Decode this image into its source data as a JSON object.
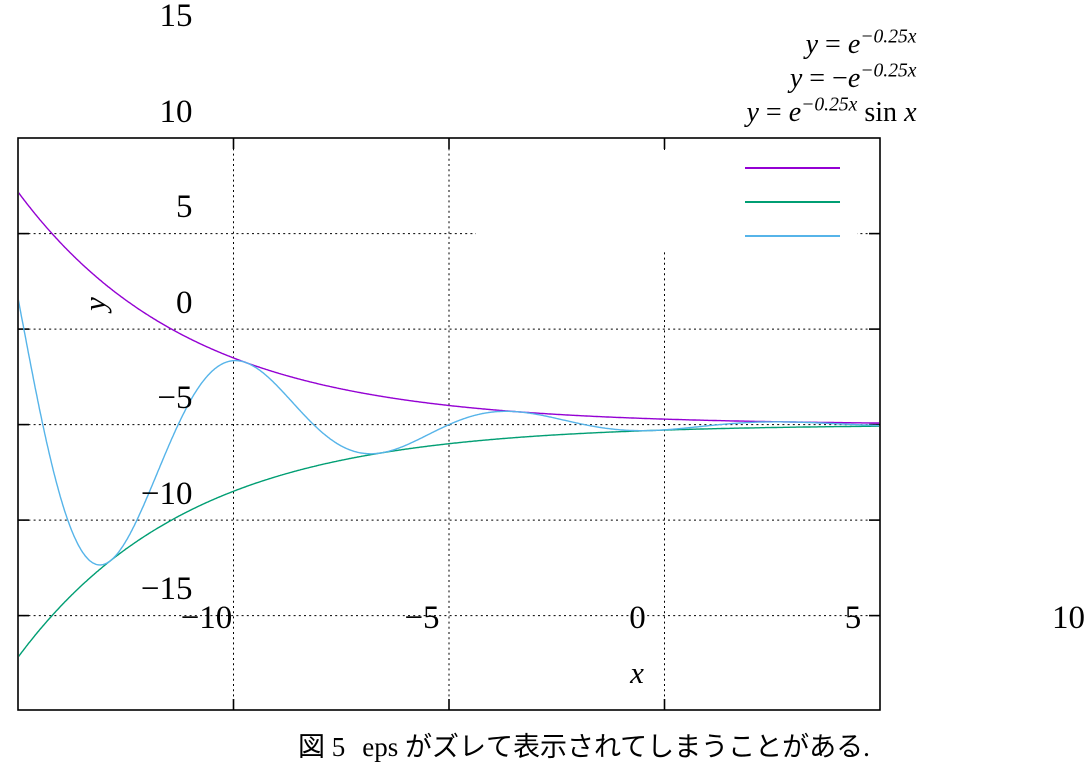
{
  "figure": {
    "caption_label": "図 5",
    "caption_text": "eps がズレて表示されてしまうことがある."
  },
  "chart_data": {
    "type": "line",
    "title": "",
    "xlabel": "x",
    "ylabel": "y",
    "xlim": [
      -10,
      10
    ],
    "ylim": [
      -15,
      15
    ],
    "x_ticks": [
      -10,
      -5,
      0,
      5,
      10
    ],
    "y_ticks": [
      15,
      10,
      5,
      0,
      -5,
      -10,
      -15
    ],
    "grid": true,
    "grid_style": "dotted",
    "legend_position": "top-right",
    "legend_opaque": true,
    "series": [
      {
        "name": "y = e^(-0.25x)",
        "label_parts": [
          {
            "text": "y",
            "style": "italic"
          },
          {
            "text": " = ",
            "style": "roman"
          },
          {
            "text": "e",
            "style": "italic"
          },
          {
            "text": "−0.25x",
            "style": "sup"
          }
        ],
        "color": "#9400d3",
        "amplitude": 1,
        "decay": -0.25,
        "sine": false
      },
      {
        "name": "y = -e^(-0.25x)",
        "label_parts": [
          {
            "text": "y",
            "style": "italic"
          },
          {
            "text": " = −",
            "style": "roman"
          },
          {
            "text": "e",
            "style": "italic"
          },
          {
            "text": "−0.25x",
            "style": "sup"
          }
        ],
        "color": "#009e73",
        "amplitude": -1,
        "decay": -0.25,
        "sine": false
      },
      {
        "name": "y = e^(-0.25x) sin x",
        "label_parts": [
          {
            "text": "y",
            "style": "italic"
          },
          {
            "text": " = ",
            "style": "roman"
          },
          {
            "text": "e",
            "style": "italic"
          },
          {
            "text": "−0.25x",
            "style": "sup"
          },
          {
            "text": " sin ",
            "style": "roman"
          },
          {
            "text": "x",
            "style": "italic"
          }
        ],
        "color": "#56b4e9",
        "amplitude": 1,
        "decay": -0.25,
        "sine": true
      }
    ]
  }
}
